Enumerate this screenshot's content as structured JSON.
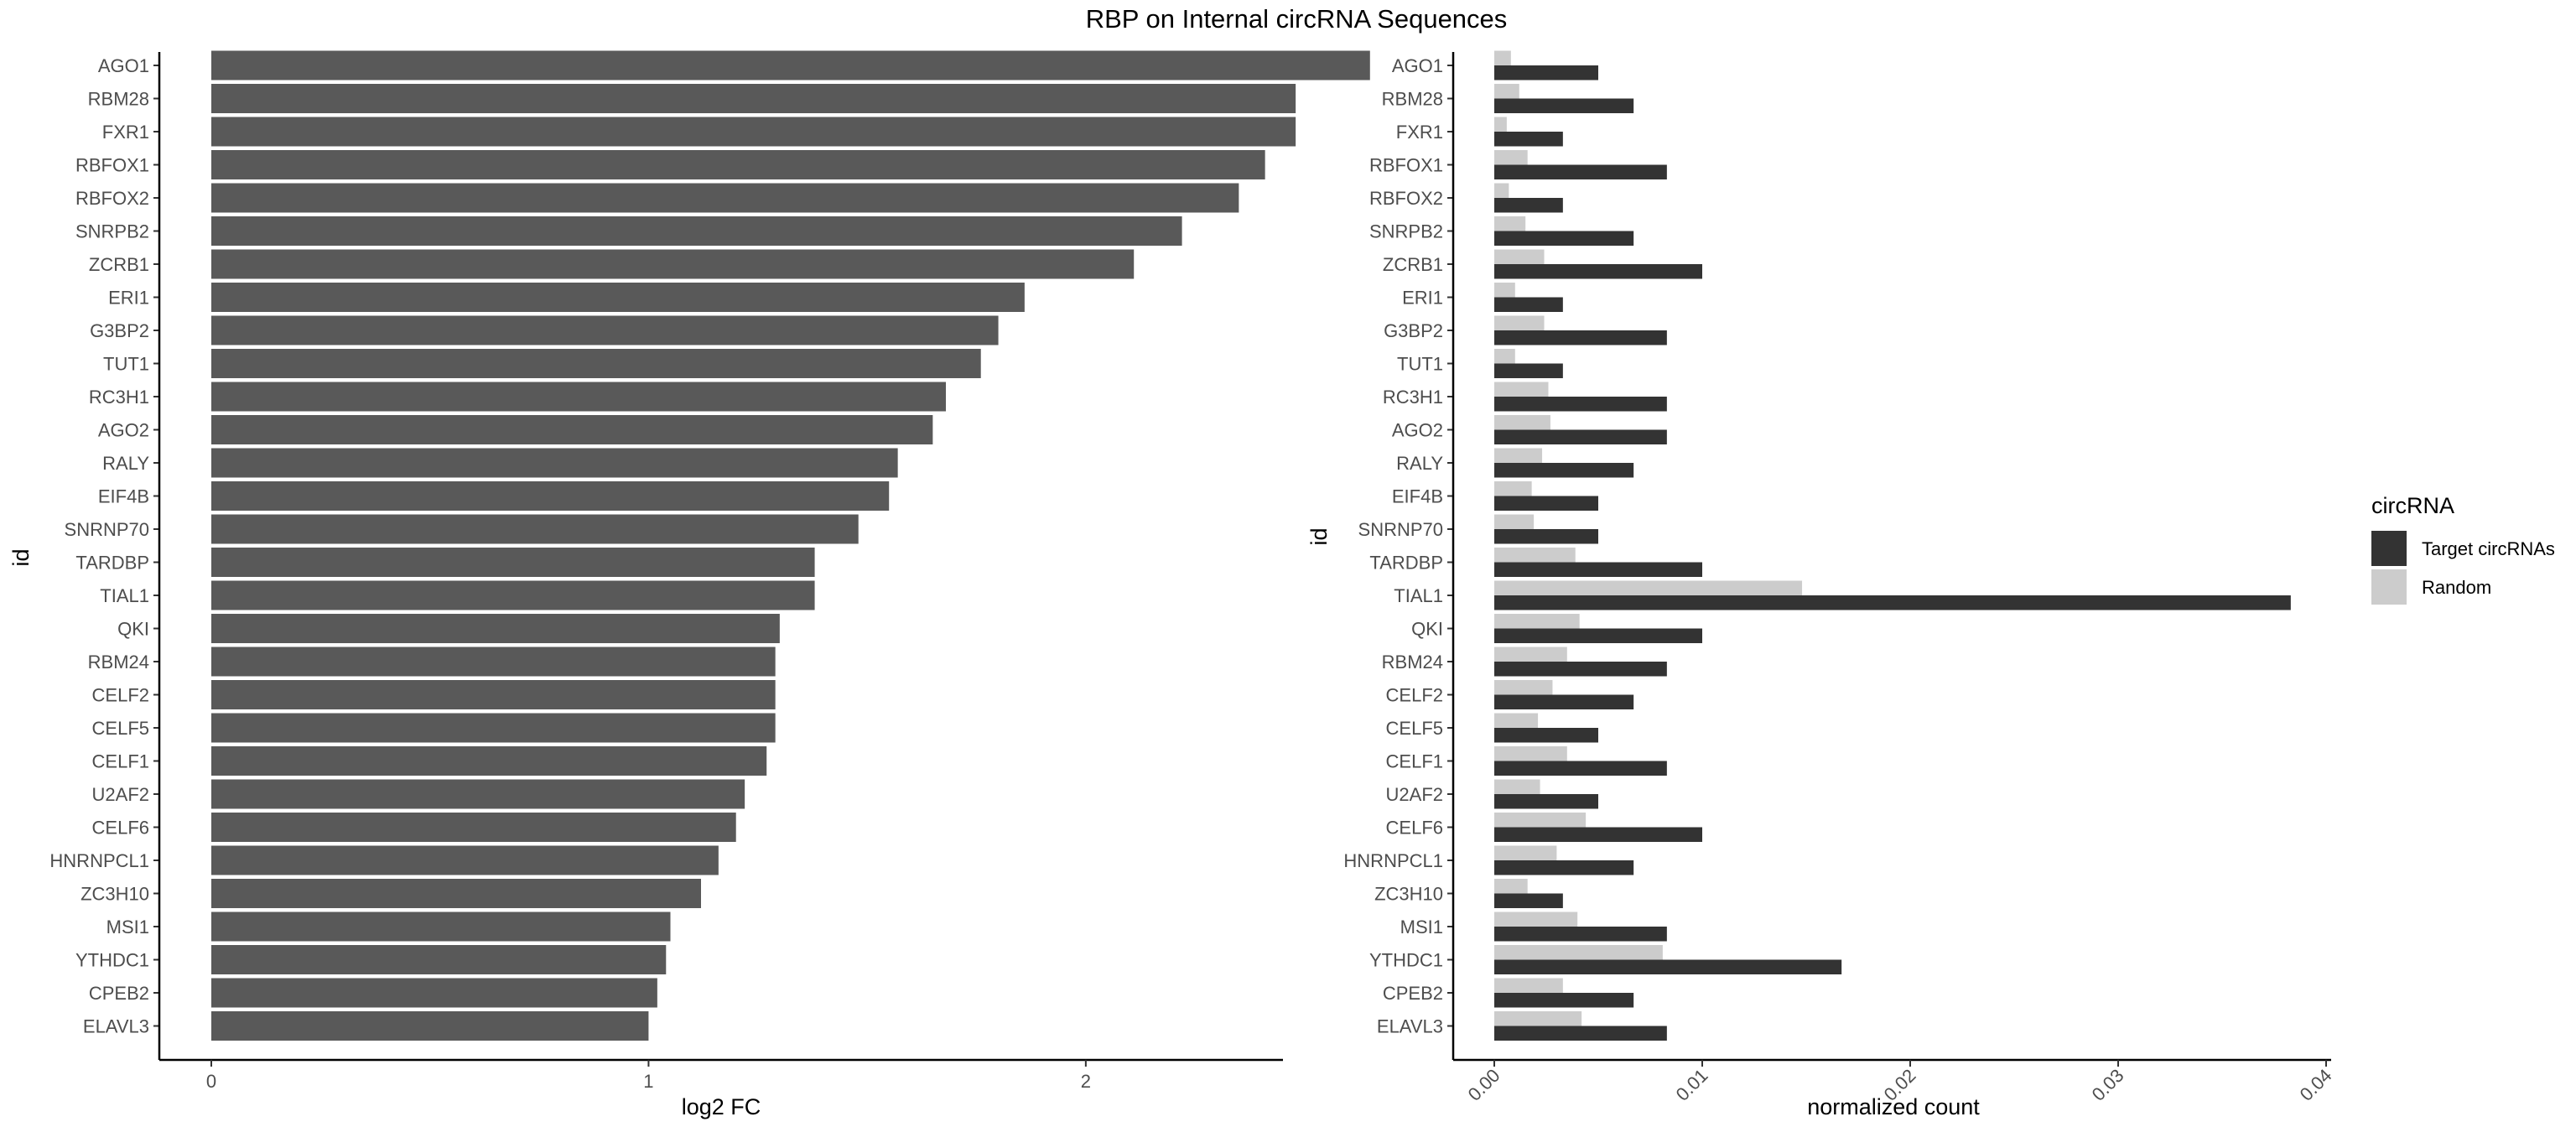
{
  "title": "RBP on Internal circRNA Sequences",
  "chart_data": [
    {
      "type": "bar",
      "orientation": "horizontal",
      "ylabel": "id",
      "xlabel": "log2 FC",
      "xlim": [
        -0.1,
        2.8
      ],
      "xticks": [
        "0",
        "1",
        "2"
      ],
      "categories": [
        "AGO1",
        "RBM28",
        "FXR1",
        "RBFOX1",
        "RBFOX2",
        "SNRPB2",
        "ZCRB1",
        "ERI1",
        "G3BP2",
        "TUT1",
        "RC3H1",
        "AGO2",
        "RALY",
        "EIF4B",
        "SNRNP70",
        "TARDBP",
        "TIAL1",
        "QKI",
        "RBM24",
        "CELF2",
        "CELF5",
        "CELF1",
        "U2AF2",
        "CELF6",
        "HNRNPCL1",
        "ZC3H10",
        "MSI1",
        "YTHDC1",
        "CPEB2",
        "ELAVL3"
      ],
      "values": [
        2.65,
        2.48,
        2.48,
        2.41,
        2.35,
        2.22,
        2.11,
        1.86,
        1.8,
        1.76,
        1.68,
        1.65,
        1.57,
        1.55,
        1.48,
        1.38,
        1.38,
        1.3,
        1.29,
        1.29,
        1.29,
        1.27,
        1.22,
        1.2,
        1.16,
        1.12,
        1.05,
        1.04,
        1.02,
        1.0
      ],
      "color": "#595959",
      "grid": false
    },
    {
      "type": "bar",
      "orientation": "horizontal",
      "grouped": true,
      "ylabel": "id",
      "xlabel": "normalized count",
      "xlim": [
        -0.002,
        0.04
      ],
      "xticks": [
        "0.00",
        "0.01",
        "0.02",
        "0.03",
        "0.04"
      ],
      "categories": [
        "AGO1",
        "RBM28",
        "FXR1",
        "RBFOX1",
        "RBFOX2",
        "SNRPB2",
        "ZCRB1",
        "ERI1",
        "G3BP2",
        "TUT1",
        "RC3H1",
        "AGO2",
        "RALY",
        "EIF4B",
        "SNRNP70",
        "TARDBP",
        "TIAL1",
        "QKI",
        "RBM24",
        "CELF2",
        "CELF5",
        "CELF1",
        "U2AF2",
        "CELF6",
        "HNRNPCL1",
        "ZC3H10",
        "MSI1",
        "YTHDC1",
        "CPEB2",
        "ELAVL3"
      ],
      "series": [
        {
          "name": "Target circRNAs",
          "color": "#333333",
          "values": [
            0.005,
            0.0067,
            0.0033,
            0.0083,
            0.0033,
            0.0067,
            0.01,
            0.0033,
            0.0083,
            0.0033,
            0.0083,
            0.0083,
            0.0067,
            0.005,
            0.005,
            0.01,
            0.0383,
            0.01,
            0.0083,
            0.0067,
            0.005,
            0.0083,
            0.005,
            0.01,
            0.0067,
            0.0033,
            0.0083,
            0.0167,
            0.0067,
            0.0083
          ]
        },
        {
          "name": "Random",
          "color": "#cccccc",
          "values": [
            0.0008,
            0.0012,
            0.0006,
            0.0016,
            0.0007,
            0.0015,
            0.0024,
            0.001,
            0.0024,
            0.001,
            0.0026,
            0.0027,
            0.0023,
            0.0018,
            0.0019,
            0.0039,
            0.0148,
            0.0041,
            0.0035,
            0.0028,
            0.0021,
            0.0035,
            0.0022,
            0.0044,
            0.003,
            0.0016,
            0.004,
            0.0081,
            0.0033,
            0.0042
          ]
        }
      ],
      "legend": {
        "title": "circRNA",
        "position": "right"
      },
      "grid": false
    }
  ]
}
